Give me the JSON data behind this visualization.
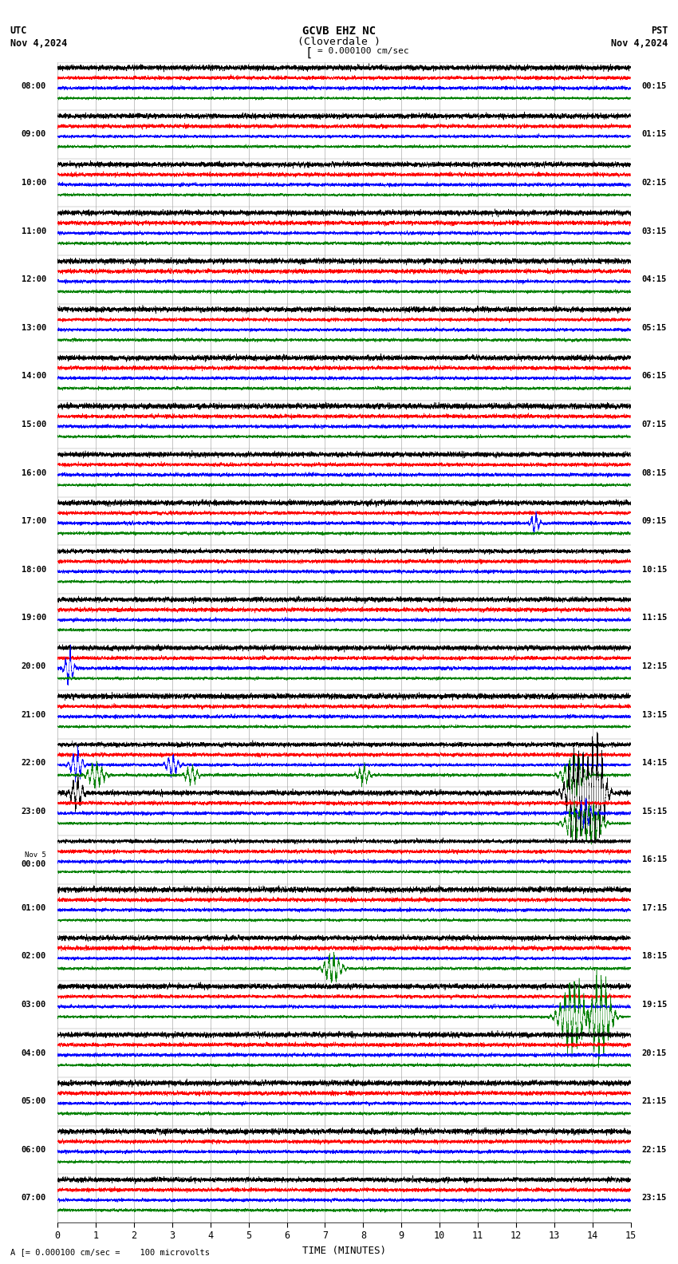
{
  "title_line1": "GCVB EHZ NC",
  "title_line2": "(Cloverdale )",
  "scale_text": "= 0.000100 cm/sec",
  "left_label_top": "UTC",
  "left_label_bot": "Nov 4,2024",
  "right_label_top": "PST",
  "right_label_bot": "Nov 4,2024",
  "bottom_label": "TIME (MINUTES)",
  "bottom_note": "A [= 0.000100 cm/sec =    100 microvolts",
  "utc_times": [
    "08:00",
    "09:00",
    "10:00",
    "11:00",
    "12:00",
    "13:00",
    "14:00",
    "15:00",
    "16:00",
    "17:00",
    "18:00",
    "19:00",
    "20:00",
    "21:00",
    "22:00",
    "23:00",
    "Nov 5\n00:00",
    "01:00",
    "02:00",
    "03:00",
    "04:00",
    "05:00",
    "06:00",
    "07:00"
  ],
  "pst_times": [
    "00:15",
    "01:15",
    "02:15",
    "03:15",
    "04:15",
    "05:15",
    "06:15",
    "07:15",
    "08:15",
    "09:15",
    "10:15",
    "11:15",
    "12:15",
    "13:15",
    "14:15",
    "15:15",
    "16:15",
    "17:15",
    "18:15",
    "19:15",
    "20:15",
    "21:15",
    "22:15",
    "23:15"
  ],
  "n_rows": 24,
  "traces_per_row": 4,
  "colors": [
    "black",
    "red",
    "blue",
    "green"
  ],
  "bg_color": "white",
  "grid_color": "#999999",
  "n_minutes": 15,
  "x_ticks": [
    0,
    1,
    2,
    3,
    4,
    5,
    6,
    7,
    8,
    9,
    10,
    11,
    12,
    13,
    14,
    15
  ]
}
